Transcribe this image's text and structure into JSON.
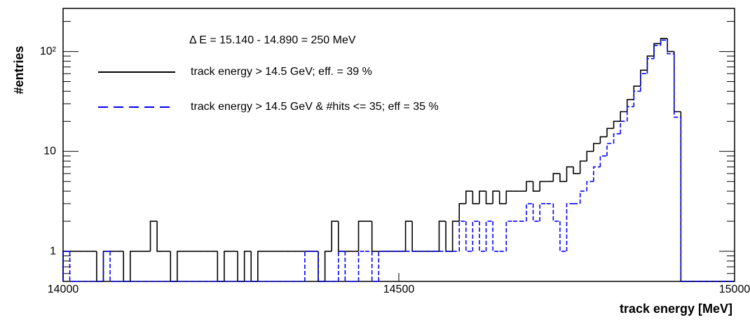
{
  "chart_data": {
    "type": "histogram",
    "annotation": "Δ E = 15.140 - 14.890 = 250 MeV",
    "y_label": "#entries",
    "x_label": "track energy [MeV]",
    "log_y": true,
    "bins": [
      14000,
      14010,
      14020,
      14030,
      14040,
      14050,
      14060,
      14070,
      14080,
      14090,
      14100,
      14110,
      14120,
      14130,
      14140,
      14150,
      14160,
      14170,
      14180,
      14190,
      14200,
      14210,
      14220,
      14230,
      14240,
      14250,
      14260,
      14270,
      14280,
      14290,
      14300,
      14310,
      14320,
      14330,
      14340,
      14350,
      14360,
      14370,
      14380,
      14390,
      14400,
      14410,
      14420,
      14430,
      14440,
      14450,
      14460,
      14470,
      14480,
      14490,
      14500,
      14510,
      14520,
      14530,
      14540,
      14550,
      14560,
      14570,
      14580,
      14590,
      14600,
      14610,
      14620,
      14630,
      14640,
      14650,
      14660,
      14670,
      14680,
      14690,
      14700,
      14710,
      14720,
      14730,
      14740,
      14750,
      14760,
      14770,
      14780,
      14790,
      14800,
      14810,
      14820,
      14830,
      14840,
      14850,
      14860,
      14870,
      14880,
      14890,
      14900,
      14910,
      14920,
      14930,
      14940,
      14950,
      14960,
      14970,
      14980,
      14990,
      15000
    ],
    "series": [
      {
        "name": "track energy > 14.5 GeV; eff. = 39 %",
        "color": "#000000",
        "dash": false,
        "values": [
          1,
          1,
          1,
          1,
          1,
          0,
          1,
          1,
          1,
          0,
          1,
          1,
          1,
          2,
          1,
          1,
          0,
          1,
          1,
          1,
          1,
          1,
          1,
          0,
          1,
          1,
          0,
          1,
          0,
          1,
          1,
          1,
          1,
          1,
          1,
          1,
          1,
          1,
          0,
          1,
          2,
          1,
          1,
          1,
          2,
          2,
          1,
          1,
          1,
          1,
          1,
          2,
          1,
          1,
          1,
          1,
          2,
          1,
          2,
          3,
          4,
          3,
          4,
          3,
          4,
          3,
          4,
          4,
          4,
          5,
          4,
          5,
          5,
          6,
          5,
          7,
          6,
          8,
          10,
          12,
          14,
          17,
          20,
          25,
          33,
          45,
          65,
          90,
          120,
          135,
          100,
          25,
          0,
          0,
          0,
          0,
          0,
          0,
          0,
          0
        ]
      },
      {
        "name": "track energy > 14.5 GeV & #hits <= 35; eff = 35 %",
        "color": "#0000ff",
        "dash": true,
        "values": [
          1,
          0,
          0,
          0,
          0,
          0,
          1,
          0,
          0,
          0,
          0,
          0,
          0,
          0,
          0,
          0,
          0,
          0,
          0,
          0,
          0,
          0,
          0,
          0,
          0,
          0,
          0,
          0,
          0,
          0,
          0,
          0,
          0,
          0,
          0,
          0,
          1,
          1,
          0,
          0,
          0,
          1,
          0,
          0,
          1,
          1,
          0,
          1,
          1,
          1,
          1,
          1,
          1,
          1,
          1,
          1,
          1,
          1,
          1,
          2,
          1,
          2,
          1,
          2,
          1,
          1,
          2,
          2,
          2,
          3,
          2,
          3,
          3,
          2,
          1,
          3,
          3,
          4,
          5,
          7,
          9,
          12,
          15,
          20,
          28,
          40,
          60,
          85,
          115,
          130,
          95,
          22,
          0,
          0,
          0,
          0,
          0,
          0,
          0,
          0
        ]
      }
    ],
    "xlim": [
      14000,
      15000
    ],
    "xticks": [
      14000,
      14500,
      15000
    ],
    "ylim": [
      0.5,
      270
    ],
    "yticks": [
      1,
      10,
      {
        "value": 100,
        "label": "10²"
      }
    ]
  }
}
